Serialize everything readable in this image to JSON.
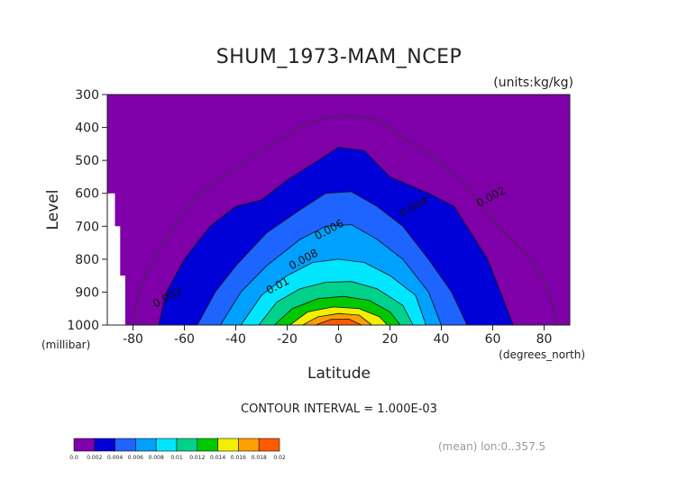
{
  "chart_data": {
    "type": "heatmap",
    "title": "SHUM_1973-MAM_NCEP",
    "units_note": "(units:kg/kg)",
    "xlabel": "Latitude",
    "ylabel": "Level",
    "x_unit": "(degrees_north)",
    "y_unit": "(millibar)",
    "xlim": [
      -90,
      90
    ],
    "ylim": [
      300,
      1000
    ],
    "y_reversed": true,
    "x_ticks": [
      -80,
      -60,
      -40,
      -20,
      0,
      20,
      40,
      60,
      80
    ],
    "y_ticks": [
      300,
      400,
      500,
      600,
      700,
      800,
      900,
      1000
    ],
    "x_tick_labels": [
      "-80",
      "-60",
      "-40",
      "-20",
      "0",
      "20",
      "40",
      "60",
      "80"
    ],
    "y_tick_labels": [
      "300",
      "400",
      "500",
      "600",
      "700",
      "800",
      "900",
      "1000"
    ],
    "contour_interval_text": "CONTOUR INTERVAL = 1.000E-03",
    "footer_note": "(mean) lon:0..357.5",
    "colorbar": {
      "labels": [
        "0.0",
        "0.002",
        "0.004",
        "0.006",
        "0.008",
        "0.01",
        "0.012",
        "0.014",
        "0.016",
        "0.018",
        "0.02"
      ],
      "colors": [
        "#7f00a8",
        "#0000d8",
        "#1e64ff",
        "#00a0ff",
        "#00e6ff",
        "#00d28c",
        "#00c800",
        "#f0f000",
        "#ffa000",
        "#ff5a00",
        "#ff0000"
      ]
    },
    "contour_labels": [
      {
        "text": "0.002",
        "lat": 60,
        "lev": 620
      },
      {
        "text": "0.002",
        "lat": -66,
        "lev": 925
      },
      {
        "text": "0.004",
        "lat": 30,
        "lev": 650
      },
      {
        "text": "0.006",
        "lat": -3,
        "lev": 720
      },
      {
        "text": "0.008",
        "lat": -13,
        "lev": 810
      },
      {
        "text": "0.01",
        "lat": -23,
        "lev": 890
      }
    ],
    "contours": [
      {
        "level": 0.002,
        "points": [
          [
            -70,
            1000
          ],
          [
            -67,
            900
          ],
          [
            -60,
            800
          ],
          [
            -50,
            700
          ],
          [
            -40,
            640
          ],
          [
            -30,
            620
          ],
          [
            -20,
            560
          ],
          [
            -10,
            510
          ],
          [
            0,
            460
          ],
          [
            10,
            470
          ],
          [
            20,
            550
          ],
          [
            35,
            600
          ],
          [
            45,
            640
          ],
          [
            58,
            800
          ],
          [
            68,
            1000
          ]
        ]
      },
      {
        "level": 0.004,
        "points": [
          [
            -55,
            1000
          ],
          [
            -48,
            900
          ],
          [
            -40,
            820
          ],
          [
            -28,
            720
          ],
          [
            -15,
            650
          ],
          [
            -5,
            600
          ],
          [
            5,
            595
          ],
          [
            15,
            640
          ],
          [
            25,
            700
          ],
          [
            35,
            800
          ],
          [
            44,
            900
          ],
          [
            50,
            1000
          ]
        ]
      },
      {
        "level": 0.006,
        "points": [
          [
            -46,
            1000
          ],
          [
            -38,
            900
          ],
          [
            -28,
            820
          ],
          [
            -15,
            740
          ],
          [
            -5,
            700
          ],
          [
            5,
            695
          ],
          [
            15,
            740
          ],
          [
            25,
            800
          ],
          [
            35,
            900
          ],
          [
            40,
            1000
          ]
        ]
      },
      {
        "level": 0.008,
        "points": [
          [
            -38,
            1000
          ],
          [
            -30,
            910
          ],
          [
            -20,
            850
          ],
          [
            -10,
            810
          ],
          [
            0,
            800
          ],
          [
            10,
            810
          ],
          [
            20,
            850
          ],
          [
            30,
            910
          ],
          [
            34,
            1000
          ]
        ]
      },
      {
        "level": 0.01,
        "points": [
          [
            -31,
            1000
          ],
          [
            -24,
            930
          ],
          [
            -15,
            890
          ],
          [
            -5,
            870
          ],
          [
            5,
            868
          ],
          [
            15,
            890
          ],
          [
            25,
            940
          ],
          [
            29,
            1000
          ]
        ]
      },
      {
        "level": 0.012,
        "points": [
          [
            -25,
            1000
          ],
          [
            -18,
            950
          ],
          [
            -8,
            920
          ],
          [
            2,
            913
          ],
          [
            12,
            925
          ],
          [
            20,
            960
          ],
          [
            24,
            1000
          ]
        ]
      },
      {
        "level": 0.014,
        "points": [
          [
            -19,
            1000
          ],
          [
            -12,
            960
          ],
          [
            -2,
            945
          ],
          [
            8,
            950
          ],
          [
            16,
            975
          ],
          [
            19,
            1000
          ]
        ]
      },
      {
        "level": 0.016,
        "points": [
          [
            -14,
            1000
          ],
          [
            -8,
            975
          ],
          [
            0,
            965
          ],
          [
            8,
            970
          ],
          [
            13,
            1000
          ]
        ]
      },
      {
        "level": 0.018,
        "points": [
          [
            -9,
            1000
          ],
          [
            -3,
            983
          ],
          [
            4,
            982
          ],
          [
            9,
            1000
          ]
        ]
      }
    ],
    "outer_contours": [
      {
        "level": 0.001,
        "points": [
          [
            -80,
            1000
          ],
          [
            -78,
            900
          ],
          [
            -72,
            800
          ],
          [
            -64,
            700
          ],
          [
            -55,
            610
          ],
          [
            -45,
            550
          ],
          [
            -30,
            470
          ],
          [
            -15,
            400
          ],
          [
            -5,
            370
          ],
          [
            5,
            365
          ],
          [
            15,
            375
          ],
          [
            25,
            430
          ],
          [
            35,
            480
          ],
          [
            48,
            560
          ],
          [
            62,
            700
          ],
          [
            75,
            800
          ],
          [
            82,
            900
          ],
          [
            85,
            1000
          ]
        ]
      }
    ],
    "missing_region": [
      [
        -90,
        600
      ],
      [
        -87,
        600
      ],
      [
        -87,
        700
      ],
      [
        -85,
        700
      ],
      [
        -85,
        850
      ],
      [
        -83,
        850
      ],
      [
        -83,
        1000
      ],
      [
        -90,
        1000
      ]
    ]
  }
}
